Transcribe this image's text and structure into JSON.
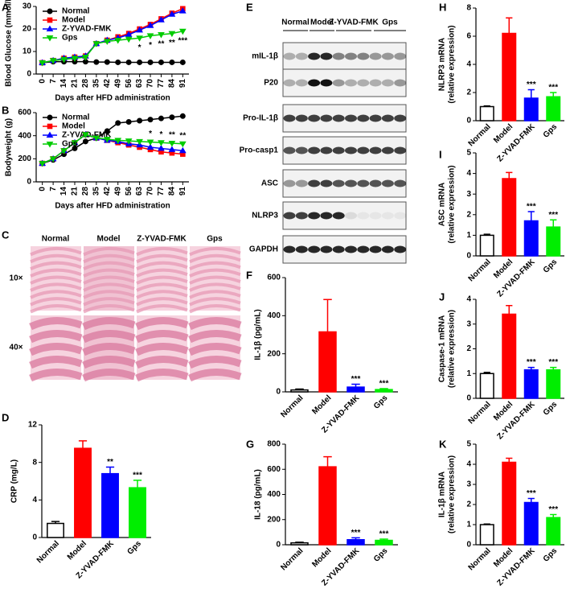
{
  "chart_data": [
    {
      "type": "line",
      "panel": "A",
      "ylabel": "Blood Glucose (mmol/L)",
      "xlabel": "Days after HFD administration",
      "x": [
        0,
        7,
        14,
        21,
        28,
        35,
        42,
        49,
        56,
        63,
        70,
        77,
        84,
        91
      ],
      "xlim": [
        -4,
        95
      ],
      "xticks": [
        0,
        7,
        14,
        21,
        28,
        35,
        42,
        49,
        56,
        63,
        70,
        77,
        84,
        91
      ],
      "ylim": [
        0,
        30
      ],
      "yticks": [
        0,
        10,
        20,
        30
      ],
      "legend": "upper left",
      "series": [
        {
          "name": "Normal",
          "color": "#000000",
          "marker": "circle",
          "values": [
            5,
            5.5,
            5.5,
            5.5,
            5.5,
            5.3,
            5.3,
            5.2,
            5.2,
            5.2,
            5.2,
            5.2,
            5.2,
            5.2
          ]
        },
        {
          "name": "Model",
          "color": "#ff0000",
          "marker": "square",
          "values": [
            5,
            6,
            7,
            7.5,
            8,
            13.5,
            15,
            16.5,
            18,
            20,
            22,
            24.5,
            27,
            29
          ]
        },
        {
          "name": "Z-YVAD-FMK",
          "color": "#0000ff",
          "marker": "triangle",
          "values": [
            5,
            6,
            7,
            7.5,
            8,
            13.5,
            15,
            16,
            17.5,
            19.5,
            21.5,
            24,
            26.5,
            28
          ]
        },
        {
          "name": "Gps",
          "color": "#00cc00",
          "marker": "triangle-down",
          "values": [
            5,
            6,
            6.5,
            7,
            7.5,
            13.5,
            14.5,
            15,
            15.5,
            16,
            17,
            17.5,
            18,
            19
          ]
        }
      ],
      "annotations": [
        {
          "x": 63,
          "text": "*"
        },
        {
          "x": 70,
          "text": "*"
        },
        {
          "x": 77,
          "text": "**"
        },
        {
          "x": 84,
          "text": "**"
        },
        {
          "x": 91,
          "text": "***"
        }
      ]
    },
    {
      "type": "line",
      "panel": "B",
      "ylabel": "Bodyweight (g)",
      "xlabel": "Days after HFD administration",
      "x": [
        0,
        7,
        14,
        21,
        28,
        35,
        42,
        49,
        56,
        63,
        70,
        77,
        84,
        91
      ],
      "xlim": [
        -4,
        95
      ],
      "xticks": [
        0,
        7,
        14,
        21,
        28,
        35,
        42,
        49,
        56,
        63,
        70,
        77,
        84,
        91
      ],
      "ylim": [
        0,
        600
      ],
      "yticks": [
        0,
        200,
        400,
        600
      ],
      "legend": "upper left",
      "series": [
        {
          "name": "Normal",
          "color": "#000000",
          "marker": "circle",
          "values": [
            160,
            190,
            240,
            290,
            350,
            380,
            440,
            510,
            520,
            530,
            540,
            550,
            560,
            570
          ]
        },
        {
          "name": "Model",
          "color": "#ff0000",
          "marker": "square",
          "values": [
            160,
            200,
            270,
            340,
            410,
            380,
            360,
            340,
            320,
            300,
            280,
            260,
            250,
            240
          ]
        },
        {
          "name": "Z-YVAD-FMK",
          "color": "#0000ff",
          "marker": "triangle",
          "values": [
            160,
            200,
            270,
            340,
            410,
            380,
            360,
            350,
            330,
            320,
            300,
            290,
            280,
            270
          ]
        },
        {
          "name": "Gps",
          "color": "#00cc00",
          "marker": "triangle-down",
          "values": [
            160,
            200,
            270,
            340,
            410,
            380,
            370,
            360,
            355,
            350,
            345,
            340,
            335,
            330
          ]
        }
      ],
      "annotations": [
        {
          "x": 70,
          "text": "*"
        },
        {
          "x": 77,
          "text": "*"
        },
        {
          "x": 84,
          "text": "**"
        },
        {
          "x": 91,
          "text": "**"
        }
      ]
    },
    {
      "type": "bar",
      "panel": "D",
      "ylabel": "CRP (mg/L)",
      "categories": [
        "Normal",
        "Model",
        "Z-YVAD-FMK",
        "Gps"
      ],
      "colors": [
        "#ffffff",
        "#ff0000",
        "#0000ff",
        "#00ee00"
      ],
      "values": [
        1.5,
        9.5,
        6.8,
        5.3
      ],
      "errors": [
        0.2,
        0.8,
        0.7,
        0.8
      ],
      "ylim": [
        0,
        12
      ],
      "yticks": [
        0,
        4,
        8,
        12
      ],
      "annotations": [
        null,
        null,
        "**",
        "***"
      ]
    },
    {
      "type": "bar",
      "panel": "F",
      "ylabel": "IL-1β (pg/mL)",
      "categories": [
        "Normal",
        "Model",
        "Z-YVAD-FMK",
        "Gps"
      ],
      "colors": [
        "#ffffff",
        "#ff0000",
        "#0000ff",
        "#00ee00"
      ],
      "values": [
        10,
        315,
        25,
        12
      ],
      "errors": [
        5,
        170,
        15,
        5
      ],
      "ylim": [
        0,
        600
      ],
      "yticks": [
        0,
        200,
        400,
        600
      ],
      "annotations": [
        null,
        null,
        "***",
        "***"
      ]
    },
    {
      "type": "bar",
      "panel": "G",
      "ylabel": "IL-18 (pg/mL)",
      "categories": [
        "Normal",
        "Model",
        "Z-YVAD-FMK",
        "Gps"
      ],
      "colors": [
        "#ffffff",
        "#ff0000",
        "#0000ff",
        "#00ee00"
      ],
      "values": [
        15,
        620,
        40,
        35
      ],
      "errors": [
        5,
        80,
        15,
        10
      ],
      "ylim": [
        0,
        800
      ],
      "yticks": [
        0,
        200,
        400,
        600,
        800
      ],
      "annotations": [
        null,
        null,
        "***",
        "***"
      ]
    },
    {
      "type": "bar",
      "panel": "H",
      "ylabel": [
        "NLRP3 mRNA",
        "(relative expression)"
      ],
      "categories": [
        "Normal",
        "Model",
        "Z-YVAD-FMK",
        "Gps"
      ],
      "colors": [
        "#ffffff",
        "#ff0000",
        "#0000ff",
        "#00ee00"
      ],
      "values": [
        1.0,
        6.2,
        1.6,
        1.7
      ],
      "errors": [
        0.05,
        1.1,
        0.6,
        0.3
      ],
      "ylim": [
        0,
        8
      ],
      "yticks": [
        0,
        2,
        4,
        6,
        8
      ],
      "annotations": [
        null,
        null,
        "***",
        "***"
      ]
    },
    {
      "type": "bar",
      "panel": "I",
      "ylabel": [
        "ASC mRNA",
        "(relative expression)"
      ],
      "categories": [
        "Normal",
        "Model",
        "Z-YVAD-FMK",
        "Gps"
      ],
      "colors": [
        "#ffffff",
        "#ff0000",
        "#0000ff",
        "#00ee00"
      ],
      "values": [
        1.0,
        3.75,
        1.7,
        1.4
      ],
      "errors": [
        0.05,
        0.3,
        0.45,
        0.35
      ],
      "ylim": [
        0,
        5
      ],
      "yticks": [
        0,
        1,
        2,
        3,
        4,
        5
      ],
      "annotations": [
        null,
        null,
        "***",
        "***"
      ]
    },
    {
      "type": "bar",
      "panel": "J",
      "ylabel": [
        "Caspase-1 mRNA",
        "(relative expression)"
      ],
      "categories": [
        "Normal",
        "Model",
        "Z-YVAD-FMK",
        "Gps"
      ],
      "colors": [
        "#ffffff",
        "#ff0000",
        "#0000ff",
        "#00ee00"
      ],
      "values": [
        1.0,
        3.4,
        1.15,
        1.15
      ],
      "errors": [
        0.05,
        0.35,
        0.1,
        0.1
      ],
      "ylim": [
        0,
        4
      ],
      "yticks": [
        0,
        1,
        2,
        3,
        4
      ],
      "annotations": [
        null,
        null,
        "***",
        "***"
      ]
    },
    {
      "type": "bar",
      "panel": "K",
      "ylabel": [
        "IL-1β mRNA",
        "(relative expression)"
      ],
      "categories": [
        "Normal",
        "Model",
        "Z-YVAD-FMK",
        "Gps"
      ],
      "colors": [
        "#ffffff",
        "#ff0000",
        "#0000ff",
        "#00ee00"
      ],
      "values": [
        1.0,
        4.1,
        2.1,
        1.35
      ],
      "errors": [
        0.03,
        0.2,
        0.2,
        0.15
      ],
      "ylim": [
        0,
        5
      ],
      "yticks": [
        0,
        1,
        2,
        3,
        4,
        5
      ],
      "annotations": [
        null,
        null,
        "***",
        "***"
      ]
    }
  ],
  "panel_c": {
    "panel": "C",
    "groups": [
      "Normal",
      "Model",
      "Z-YVAD-FMK",
      "Gps"
    ],
    "magnifications": [
      "10×",
      "40×"
    ]
  },
  "panel_e": {
    "panel": "E",
    "groups": [
      "Normal",
      "Model",
      "Z-YVAD-FMK",
      "Gps"
    ],
    "proteins": [
      "mIL-1β",
      "P20",
      "Pro-IL-1β",
      "Pro-casp1",
      "ASC",
      "NLRP3",
      "GAPDH"
    ]
  }
}
